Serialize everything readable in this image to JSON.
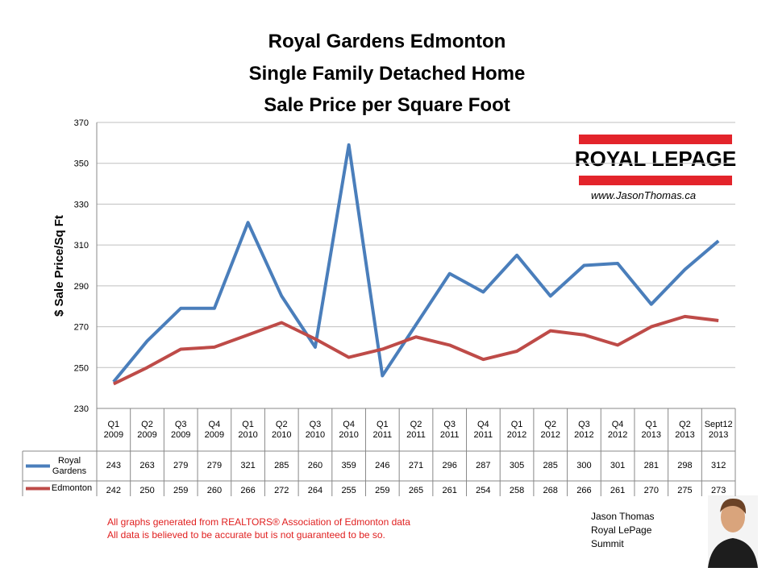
{
  "chart_data": {
    "type": "line",
    "title": "Royal Gardens Edmonton",
    "subtitle": [
      "Single Family Detached Home",
      "Sale Price per Square Foot"
    ],
    "y_label": "$ Sale Price/Sq Ft",
    "categories": [
      "Q1 2009",
      "Q2 2009",
      "Q3 2009",
      "Q4 2009",
      "Q1 2010",
      "Q2 2010",
      "Q3 2010",
      "Q4 2010",
      "Q1 2011",
      "Q2 2011",
      "Q3 2011",
      "Q4 2011",
      "Q1 2012",
      "Q2 2012",
      "Q3 2012",
      "Q4 2012",
      "Q1 2013",
      "Q2 2013",
      "Sept12 2013"
    ],
    "series": [
      {
        "name": "Royal Gardens",
        "color": "#4a7ebb",
        "values": [
          243,
          263,
          279,
          279,
          321,
          285,
          260,
          359,
          246,
          271,
          296,
          287,
          305,
          285,
          300,
          301,
          281,
          298,
          312
        ]
      },
      {
        "name": "Edmonton",
        "color": "#be4b48",
        "values": [
          242,
          250,
          259,
          260,
          266,
          272,
          264,
          255,
          259,
          265,
          261,
          254,
          258,
          268,
          266,
          261,
          270,
          275,
          273
        ]
      }
    ],
    "ylim": [
      230,
      370
    ],
    "yticks": [
      230,
      250,
      270,
      290,
      310,
      330,
      350,
      370
    ],
    "grid": true,
    "annotations": {
      "logo": "ROYAL LEPAGE",
      "website": "www.JasonThomas.ca",
      "notes": [
        "All graphs generated from REALTORS® Association of Edmonton data",
        "All data is believed to be accurate but is not guaranteed to be so."
      ],
      "agent": [
        "Jason Thomas",
        "Royal LePage",
        "Summit"
      ]
    }
  }
}
